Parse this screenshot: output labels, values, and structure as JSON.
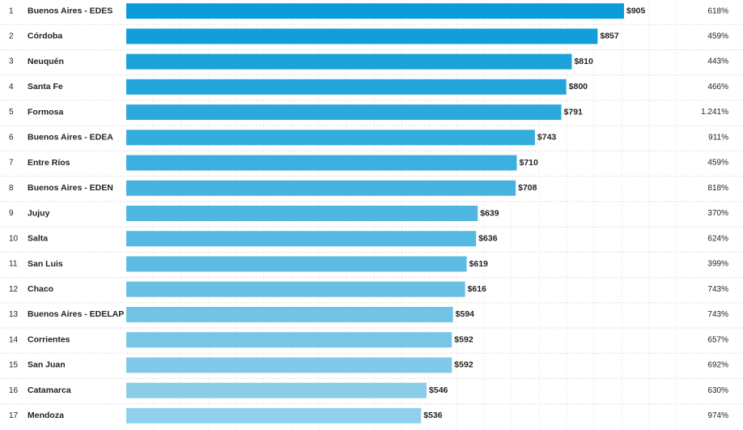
{
  "table": {
    "rows": [
      {
        "rank": "1",
        "name": "Buenos Aires - EDES",
        "value": 905,
        "value_label": "$905",
        "change": "618%"
      },
      {
        "rank": "2",
        "name": "Córdoba",
        "value": 857,
        "value_label": "$857",
        "change": "459%"
      },
      {
        "rank": "3",
        "name": "Neuquén",
        "value": 810,
        "value_label": "$810",
        "change": "443%"
      },
      {
        "rank": "4",
        "name": "Santa Fe",
        "value": 800,
        "value_label": "$800",
        "change": "466%"
      },
      {
        "rank": "5",
        "name": "Formosa",
        "value": 791,
        "value_label": "$791",
        "change": "1.241%"
      },
      {
        "rank": "6",
        "name": "Buenos Aires - EDEA",
        "value": 743,
        "value_label": "$743",
        "change": "911%"
      },
      {
        "rank": "7",
        "name": "Entre Ríos",
        "value": 710,
        "value_label": "$710",
        "change": "459%"
      },
      {
        "rank": "8",
        "name": "Buenos Aires - EDEN",
        "value": 708,
        "value_label": "$708",
        "change": "818%"
      },
      {
        "rank": "9",
        "name": "Jujuy",
        "value": 639,
        "value_label": "$639",
        "change": "370%"
      },
      {
        "rank": "10",
        "name": "Salta",
        "value": 636,
        "value_label": "$636",
        "change": "624%"
      },
      {
        "rank": "11",
        "name": "San Luis",
        "value": 619,
        "value_label": "$619",
        "change": "399%"
      },
      {
        "rank": "12",
        "name": "Chaco",
        "value": 616,
        "value_label": "$616",
        "change": "743%"
      },
      {
        "rank": "13",
        "name": "Buenos Aires - EDELAP",
        "value": 594,
        "value_label": "$594",
        "change": "743%"
      },
      {
        "rank": "14",
        "name": "Corrientes",
        "value": 592,
        "value_label": "$592",
        "change": "657%"
      },
      {
        "rank": "15",
        "name": "San Juan",
        "value": 592,
        "value_label": "$592",
        "change": "692%"
      },
      {
        "rank": "16",
        "name": "Catamarca",
        "value": 546,
        "value_label": "$546",
        "change": "630%"
      },
      {
        "rank": "17",
        "name": "Mendoza",
        "value": 536,
        "value_label": "$536",
        "change": "974%"
      }
    ]
  }
}
